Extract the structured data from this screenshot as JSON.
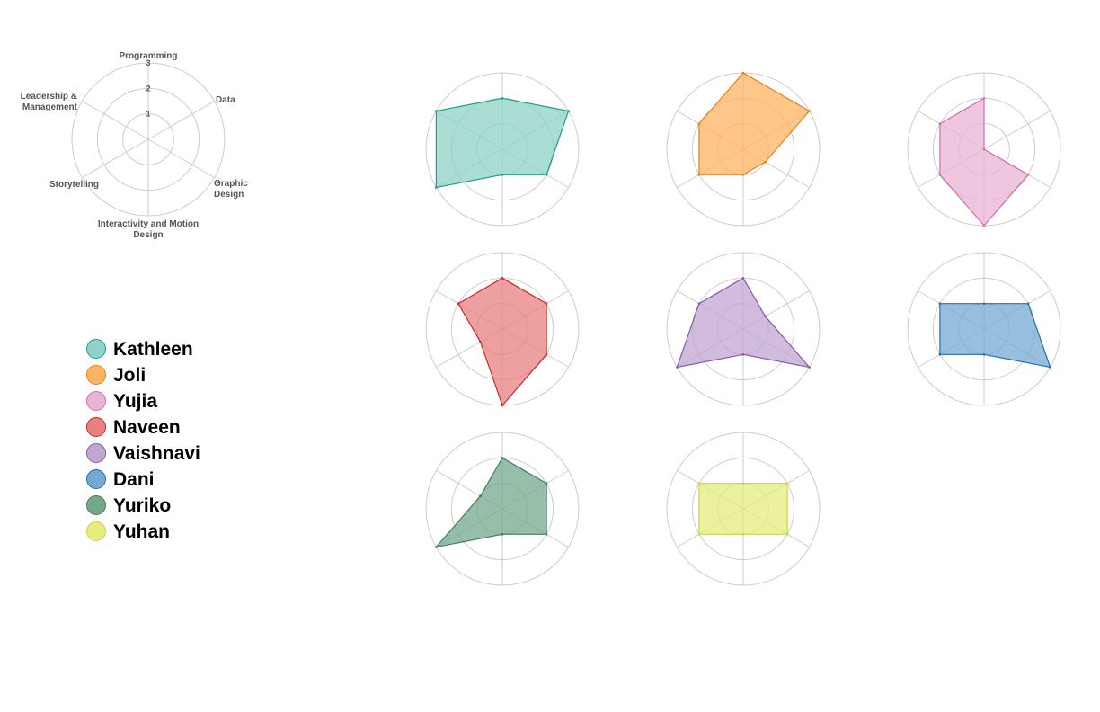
{
  "chart_data": {
    "type": "radar",
    "axes": [
      "Programming",
      "Data",
      "Graphic Design",
      "Interactivity and Motion Design",
      "Storytelling",
      "Leadership & Management"
    ],
    "axis_label_lines": [
      [
        "Programming"
      ],
      [
        "Data"
      ],
      [
        "Graphic",
        "Design"
      ],
      [
        "Interactivity and Motion",
        "Design"
      ],
      [
        "Storytelling"
      ],
      [
        "Leadership &",
        "Management"
      ]
    ],
    "ticks": [
      "1",
      "2",
      "3"
    ],
    "rmax": 3,
    "series": [
      {
        "name": "Kathleen",
        "values": [
          2,
          3,
          2,
          1,
          3,
          3
        ],
        "fill": "#8dd3c7",
        "stroke": "#1b9e8f"
      },
      {
        "name": "Joli",
        "values": [
          3,
          3,
          1,
          1,
          2,
          2
        ],
        "fill": "#fdb462",
        "stroke": "#e6811c"
      },
      {
        "name": "Yujia",
        "values": [
          2,
          0,
          2,
          3,
          2,
          2
        ],
        "fill": "#e9b3d6",
        "stroke": "#cf6fae"
      },
      {
        "name": "Naveen",
        "values": [
          2,
          2,
          2,
          3,
          1,
          2
        ],
        "fill": "#e88080",
        "stroke": "#c42b2b"
      },
      {
        "name": "Vaishnavi",
        "values": [
          2,
          1,
          3,
          1,
          3,
          2
        ],
        "fill": "#c1a6d2",
        "stroke": "#8a5aa6"
      },
      {
        "name": "Dani",
        "values": [
          1,
          2,
          3,
          1,
          2,
          2
        ],
        "fill": "#75a9d1",
        "stroke": "#2171a8"
      },
      {
        "name": "Yuriko",
        "values": [
          2,
          2,
          2,
          1,
          3,
          1
        ],
        "fill": "#72a98b",
        "stroke": "#4d7a60"
      },
      {
        "name": "Yuhan",
        "values": [
          1,
          2,
          2,
          1,
          2,
          2
        ],
        "fill": "#e6ec7e",
        "stroke": "#cdd447"
      }
    ]
  }
}
